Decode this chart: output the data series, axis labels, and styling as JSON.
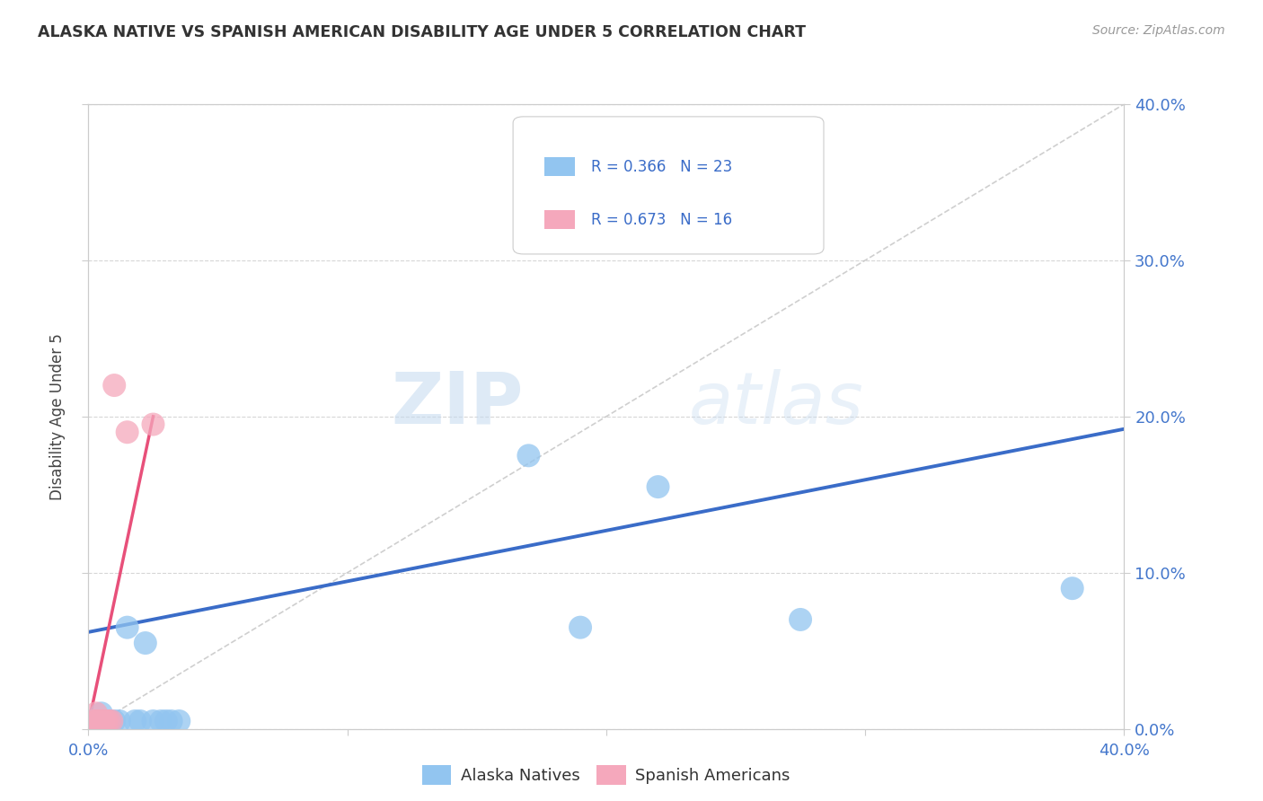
{
  "title": "ALASKA NATIVE VS SPANISH AMERICAN DISABILITY AGE UNDER 5 CORRELATION CHART",
  "source": "Source: ZipAtlas.com",
  "ylabel": "Disability Age Under 5",
  "xlim": [
    0.0,
    0.4
  ],
  "ylim": [
    0.0,
    0.4
  ],
  "xticks": [
    0.0,
    0.1,
    0.2,
    0.3,
    0.4
  ],
  "yticks": [
    0.0,
    0.1,
    0.2,
    0.3,
    0.4
  ],
  "xtick_labels_bottom": [
    "0.0%",
    "",
    "",
    "",
    "40.0%"
  ],
  "ytick_labels_right": [
    "0.0%",
    "10.0%",
    "20.0%",
    "30.0%",
    "40.0%"
  ],
  "blue_color": "#92C5F0",
  "pink_color": "#F5A8BC",
  "blue_line_color": "#3A6CC8",
  "pink_line_color": "#E8507A",
  "grid_color": "#CCCCCC",
  "background_color": "#FFFFFF",
  "watermark_zip": "ZIP",
  "watermark_atlas": "atlas",
  "legend_label_blue": "Alaska Natives",
  "legend_label_pink": "Spanish Americans",
  "blue_x": [
    0.001,
    0.001,
    0.002,
    0.003,
    0.004,
    0.005,
    0.006,
    0.008,
    0.01,
    0.012,
    0.015,
    0.018,
    0.02,
    0.022,
    0.025,
    0.028,
    0.03,
    0.032,
    0.035,
    0.17,
    0.19,
    0.22,
    0.275,
    0.38
  ],
  "blue_y": [
    0.0,
    0.005,
    0.003,
    0.005,
    0.005,
    0.01,
    0.005,
    0.005,
    0.005,
    0.005,
    0.065,
    0.005,
    0.005,
    0.055,
    0.005,
    0.005,
    0.005,
    0.005,
    0.005,
    0.175,
    0.065,
    0.155,
    0.07,
    0.09
  ],
  "pink_x": [
    0.001,
    0.001,
    0.002,
    0.002,
    0.003,
    0.003,
    0.004,
    0.005,
    0.005,
    0.006,
    0.007,
    0.008,
    0.009,
    0.01,
    0.015,
    0.025
  ],
  "pink_y": [
    0.0,
    0.003,
    0.003,
    0.005,
    0.005,
    0.01,
    0.005,
    0.003,
    0.005,
    0.005,
    0.005,
    0.005,
    0.005,
    0.22,
    0.19,
    0.195
  ],
  "blue_line_x0": 0.0,
  "blue_line_y0": 0.062,
  "blue_line_x1": 0.4,
  "blue_line_y1": 0.192,
  "pink_line_x0": 0.0,
  "pink_line_y0": 0.003,
  "pink_line_x1": 0.025,
  "pink_line_y1": 0.2
}
